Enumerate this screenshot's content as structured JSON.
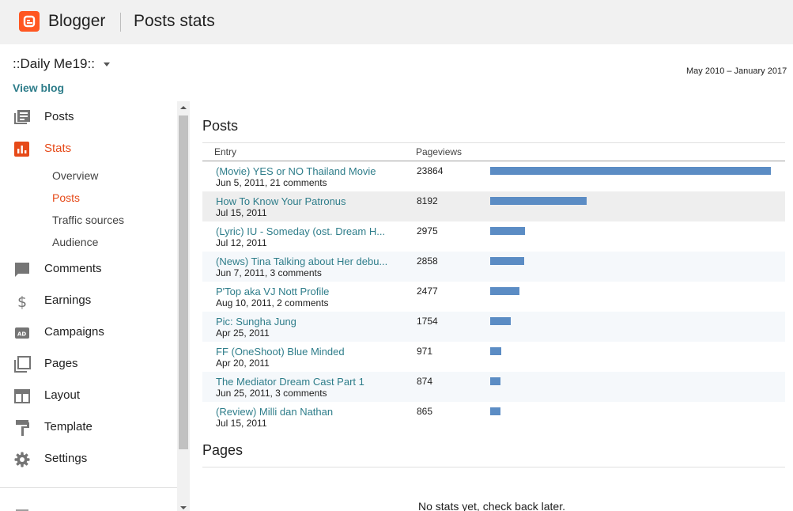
{
  "header": {
    "brand": "Blogger",
    "title": "Posts stats"
  },
  "blog": {
    "name": "::Daily Me19::",
    "view_blog": "View blog"
  },
  "date_range": "May 2010 – January 2017",
  "sidebar": {
    "items": [
      {
        "label": "Posts",
        "icon": "posts-icon"
      },
      {
        "label": "Stats",
        "icon": "stats-icon"
      },
      {
        "label": "Comments",
        "icon": "comments-icon"
      },
      {
        "label": "Earnings",
        "icon": "earnings-icon"
      },
      {
        "label": "Campaigns",
        "icon": "campaigns-icon"
      },
      {
        "label": "Pages",
        "icon": "pages-icon"
      },
      {
        "label": "Layout",
        "icon": "layout-icon"
      },
      {
        "label": "Template",
        "icon": "template-icon"
      },
      {
        "label": "Settings",
        "icon": "settings-icon"
      }
    ],
    "stats_sub": [
      "Overview",
      "Posts",
      "Traffic sources",
      "Audience"
    ]
  },
  "posts": {
    "heading": "Posts",
    "col_entry": "Entry",
    "col_pageviews": "Pageviews",
    "rows": [
      {
        "title": "(Movie) YES or NO Thailand Movie",
        "meta": "Jun 5, 2011, 21 comments",
        "views": "23864"
      },
      {
        "title": "How To Know Your Patronus",
        "meta": "Jul 15, 2011",
        "views": "8192"
      },
      {
        "title": "(Lyric) IU - Someday (ost. Dream H...",
        "meta": "Jul 12, 2011",
        "views": "2975"
      },
      {
        "title": "(News) Tina Talking about Her debu...",
        "meta": "Jun 7, 2011, 3 comments",
        "views": "2858"
      },
      {
        "title": "P'Top aka VJ Nott Profile",
        "meta": "Aug 10, 2011, 2 comments",
        "views": "2477"
      },
      {
        "title": "Pic: Sungha Jung",
        "meta": "Apr 25, 2011",
        "views": "1754"
      },
      {
        "title": "FF (OneShoot) Blue Minded",
        "meta": "Apr 20, 2011",
        "views": "971"
      },
      {
        "title": "The Mediator Dream Cast Part 1",
        "meta": "Jun 25, 2011, 3 comments",
        "views": "874"
      },
      {
        "title": "(Review) Milli dan Nathan",
        "meta": "Jul 15, 2011",
        "views": "865"
      }
    ]
  },
  "pages": {
    "heading": "Pages",
    "empty": "No stats yet, check back later."
  },
  "colors": {
    "accent": "#e64a19",
    "link": "#2e7d8a",
    "bar": "#5b8cc4",
    "logo": "#ff5722"
  }
}
